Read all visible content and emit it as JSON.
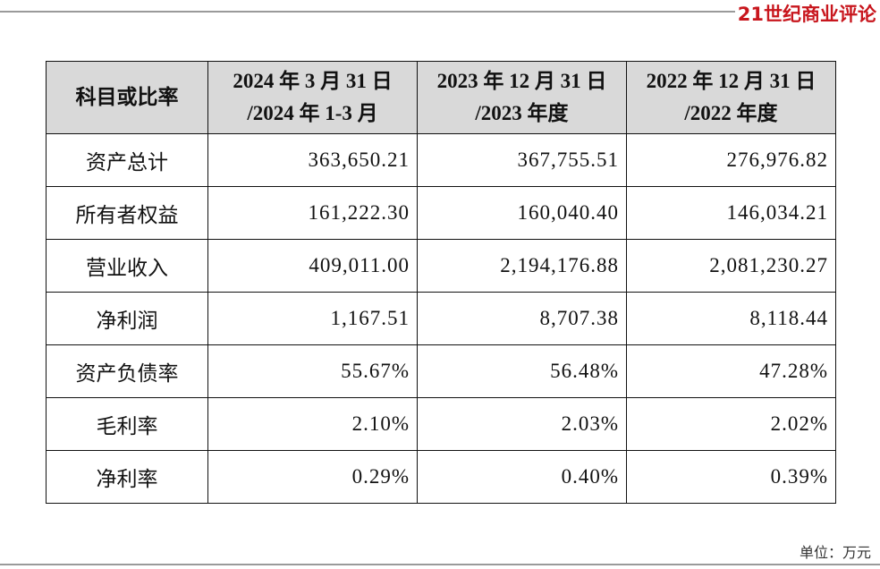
{
  "brand": "21世纪商业评论",
  "table": {
    "header": [
      [
        "科目或比率"
      ],
      [
        "2024 年 3 月 31 日",
        "/2024 年 1-3 月"
      ],
      [
        "2023 年 12 月 31 日",
        "/2023 年度"
      ],
      [
        "2022 年 12 月 31 日",
        "/2022 年度"
      ]
    ],
    "rows": [
      [
        "资产总计",
        "363,650.21",
        "367,755.51",
        "276,976.82"
      ],
      [
        "所有者权益",
        "161,222.30",
        "160,040.40",
        "146,034.21"
      ],
      [
        "营业收入",
        "409,011.00",
        "2,194,176.88",
        "2,081,230.27"
      ],
      [
        "净利润",
        "1,167.51",
        "8,707.38",
        "8,118.44"
      ],
      [
        "资产负债率",
        "55.67%",
        "56.48%",
        "47.28%"
      ],
      [
        "毛利率",
        "2.10%",
        "2.03%",
        "2.02%"
      ],
      [
        "净利率",
        "0.29%",
        "0.40%",
        "0.39%"
      ]
    ]
  },
  "unit_note": "单位：万元"
}
